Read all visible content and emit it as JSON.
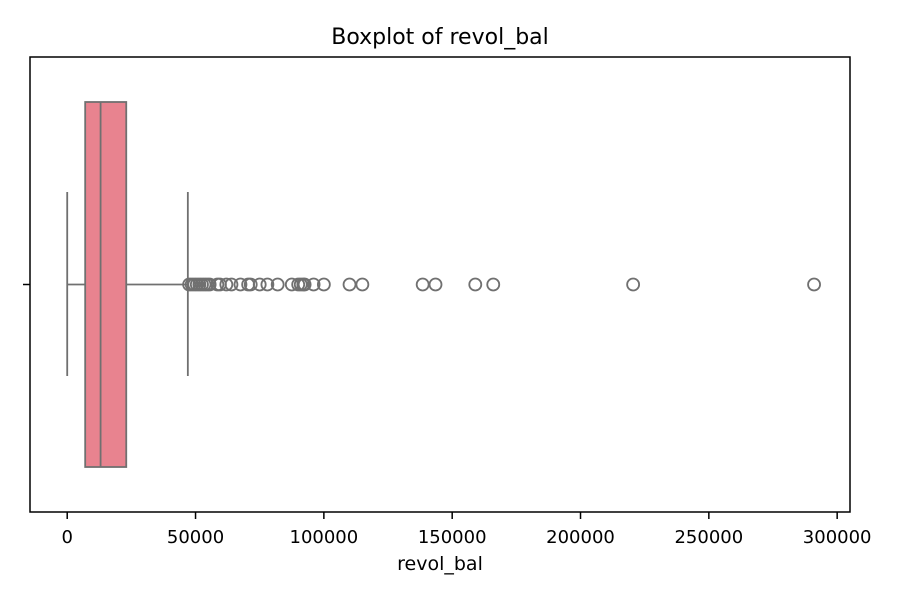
{
  "chart_data": {
    "type": "boxplot",
    "title": "Boxplot of revol_bal",
    "xlabel": "revol_bal",
    "ylabel": "",
    "xlim": [
      -14500,
      305000
    ],
    "xticks": [
      0,
      50000,
      100000,
      150000,
      200000,
      250000,
      300000
    ],
    "xtick_labels": [
      "0",
      "50000",
      "100000",
      "150000",
      "200000",
      "250000",
      "300000"
    ],
    "grid": false,
    "box": {
      "min": 0,
      "q1": 7000,
      "median": 13000,
      "q3": 23000,
      "max": 47000,
      "fill_color": "#e8838f",
      "line_color": "#707070"
    },
    "outliers": [
      47500,
      48500,
      49500,
      50500,
      51500,
      52500,
      53500,
      54500,
      55500,
      58500,
      59500,
      62000,
      64000,
      67500,
      70500,
      71500,
      75000,
      78000,
      82000,
      87500,
      90000,
      91000,
      92000,
      92500,
      96000,
      100000,
      110000,
      115000,
      138500,
      143500,
      159000,
      166000,
      220500,
      291000
    ]
  }
}
